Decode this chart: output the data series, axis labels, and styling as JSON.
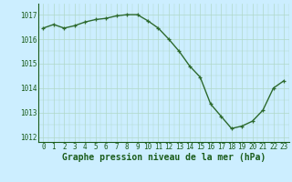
{
  "x": [
    0,
    1,
    2,
    3,
    4,
    5,
    6,
    7,
    8,
    9,
    10,
    11,
    12,
    13,
    14,
    15,
    16,
    17,
    18,
    19,
    20,
    21,
    22,
    23
  ],
  "y": [
    1016.45,
    1016.6,
    1016.45,
    1016.55,
    1016.7,
    1016.8,
    1016.85,
    1016.95,
    1017.0,
    1017.0,
    1016.75,
    1016.45,
    1016.0,
    1015.5,
    1014.9,
    1014.45,
    1013.35,
    1012.85,
    1012.35,
    1012.45,
    1012.65,
    1013.1,
    1014.0,
    1014.3
  ],
  "line_color": "#2d6a2d",
  "marker": "+",
  "marker_color": "#2d6a2d",
  "bg_color": "#cceeff",
  "grid_color": "#b0d8c8",
  "title": "Graphe pression niveau de la mer (hPa)",
  "title_color": "#1a5c1a",
  "xlim": [
    -0.5,
    23.5
  ],
  "ylim": [
    1011.8,
    1017.45
  ],
  "yticks": [
    1012,
    1013,
    1014,
    1015,
    1016,
    1017
  ],
  "xticks": [
    0,
    1,
    2,
    3,
    4,
    5,
    6,
    7,
    8,
    9,
    10,
    11,
    12,
    13,
    14,
    15,
    16,
    17,
    18,
    19,
    20,
    21,
    22,
    23
  ],
  "tick_label_fontsize": 5.5,
  "title_fontsize": 7.0,
  "linewidth": 1.0,
  "markersize": 3.5,
  "markeredgewidth": 0.9
}
